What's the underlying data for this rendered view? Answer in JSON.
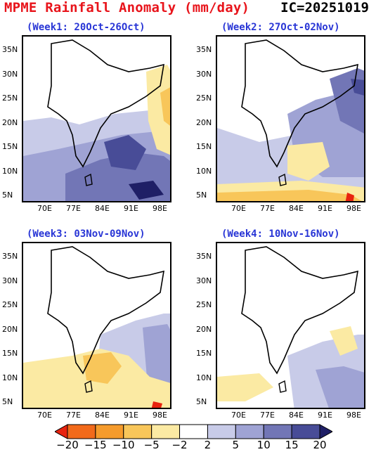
{
  "header": {
    "title": "MPME Rainfall Anomaly (mm/day)",
    "ic": "IC=20251019"
  },
  "panels": [
    {
      "title": "(Week1: 20Oct-26Oct)"
    },
    {
      "title": "(Week2: 27Oct-02Nov)"
    },
    {
      "title": "(Week3: 03Nov-09Nov)"
    },
    {
      "title": "(Week4: 10Nov-16Nov)"
    }
  ],
  "axes": {
    "y_ticks": [
      "35N",
      "30N",
      "25N",
      "20N",
      "15N",
      "10N",
      "5N"
    ],
    "x_ticks": [
      "70E",
      "77E",
      "84E",
      "91E",
      "98E"
    ]
  },
  "colorbar": {
    "labels": [
      "-20",
      "-15",
      "-10",
      "-5",
      "-2",
      "2",
      "5",
      "10",
      "15",
      "20"
    ],
    "colors": [
      "#e8230f",
      "#f26a1b",
      "#f59b2c",
      "#f8c65a",
      "#fbeaa3",
      "#ffffff",
      "#c8cbe8",
      "#9fa3d4",
      "#7276b6",
      "#484c97",
      "#1f1f66"
    ]
  }
}
